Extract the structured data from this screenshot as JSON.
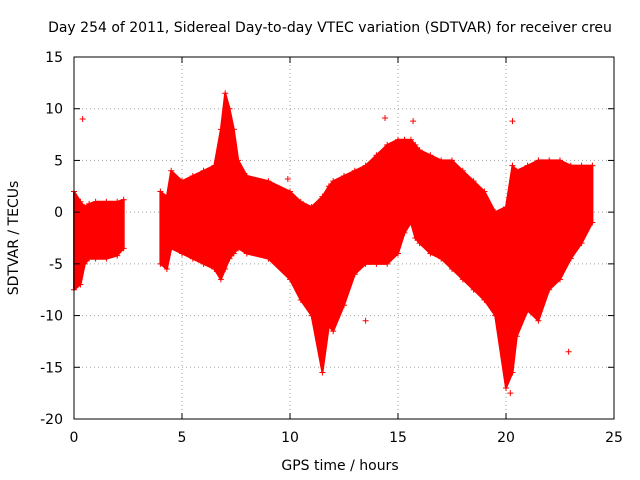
{
  "chart_data": {
    "type": "scatter",
    "title": "Day 254 of 2011, Sidereal Day-to-day VTEC variation (SDTVAR) for receiver creu",
    "xlabel": "GPS time / hours",
    "ylabel": "SDTVAR / TECUs",
    "xlim": [
      0,
      25
    ],
    "ylim": [
      -20,
      15
    ],
    "xticks": [
      0,
      5,
      10,
      15,
      20,
      25
    ],
    "yticks": [
      -20,
      -15,
      -10,
      -5,
      0,
      5,
      10,
      15
    ],
    "grid": true,
    "marker": "+",
    "color": "#ff0000",
    "series": [
      {
        "name": "SDTVAR",
        "envelope": {
          "segments": [
            {
              "x": [
                0.0,
                0.3,
                0.5,
                0.7,
                1.0,
                1.5,
                2.0,
                2.3
              ],
              "upper": [
                2.0,
                1.0,
                0.5,
                0.8,
                1.0,
                1.0,
                1.0,
                1.2
              ],
              "lower": [
                -7.5,
                -7.0,
                -5.0,
                -4.5,
                -4.5,
                -4.5,
                -4.2,
                -3.5
              ]
            },
            {
              "x": [
                4.0,
                4.3,
                4.5,
                5.0,
                5.5,
                6.0,
                6.5,
                6.8,
                7.0,
                7.2,
                7.4,
                7.6,
                8.0,
                9.0,
                10.0,
                10.5,
                11.0,
                11.5,
                11.8,
                12.0,
                12.5,
                13.0,
                13.5,
                14.0,
                14.5,
                15.0,
                15.3,
                15.6,
                15.8,
                16.0,
                16.5,
                17.0,
                17.5,
                18.0,
                18.5,
                19.0,
                19.5,
                20.0,
                20.3,
                20.5,
                21.0,
                21.5,
                22.0,
                22.5,
                23.0,
                23.5,
                24.0
              ],
              "upper": [
                2.0,
                1.5,
                4.0,
                3.0,
                3.5,
                4.0,
                4.5,
                8.0,
                11.5,
                10.0,
                8.0,
                5.0,
                3.5,
                3.0,
                2.0,
                1.0,
                0.5,
                1.5,
                2.5,
                3.0,
                3.5,
                4.0,
                4.5,
                5.5,
                6.5,
                7.0,
                7.0,
                7.0,
                6.5,
                6.0,
                5.5,
                5.0,
                5.0,
                4.0,
                3.0,
                2.0,
                0.0,
                0.5,
                4.5,
                4.0,
                4.5,
                5.0,
                5.0,
                5.0,
                4.5,
                4.5,
                4.5
              ],
              "lower": [
                -5.0,
                -5.5,
                -3.5,
                -4.0,
                -4.5,
                -5.0,
                -5.5,
                -6.5,
                -5.5,
                -4.5,
                -4.0,
                -3.5,
                -4.0,
                -4.5,
                -6.5,
                -8.5,
                -10.0,
                -15.5,
                -11.0,
                -11.5,
                -9.0,
                -6.0,
                -5.0,
                -5.0,
                -5.0,
                -4.0,
                -2.0,
                -1.0,
                -2.5,
                -3.0,
                -4.0,
                -4.5,
                -5.5,
                -6.5,
                -7.5,
                -8.5,
                -10.0,
                -17.0,
                -15.5,
                -12.0,
                -9.5,
                -10.5,
                -7.5,
                -6.5,
                -4.5,
                -3.0,
                -1.0
              ]
            }
          ]
        },
        "outliers": [
          {
            "x": 0.4,
            "y": 9.0
          },
          {
            "x": 9.9,
            "y": 3.2
          },
          {
            "x": 13.5,
            "y": -10.5
          },
          {
            "x": 14.4,
            "y": 9.1
          },
          {
            "x": 15.7,
            "y": 8.8
          },
          {
            "x": 20.3,
            "y": 8.8
          },
          {
            "x": 20.2,
            "y": -17.5
          },
          {
            "x": 22.9,
            "y": -13.5
          }
        ]
      }
    ]
  }
}
